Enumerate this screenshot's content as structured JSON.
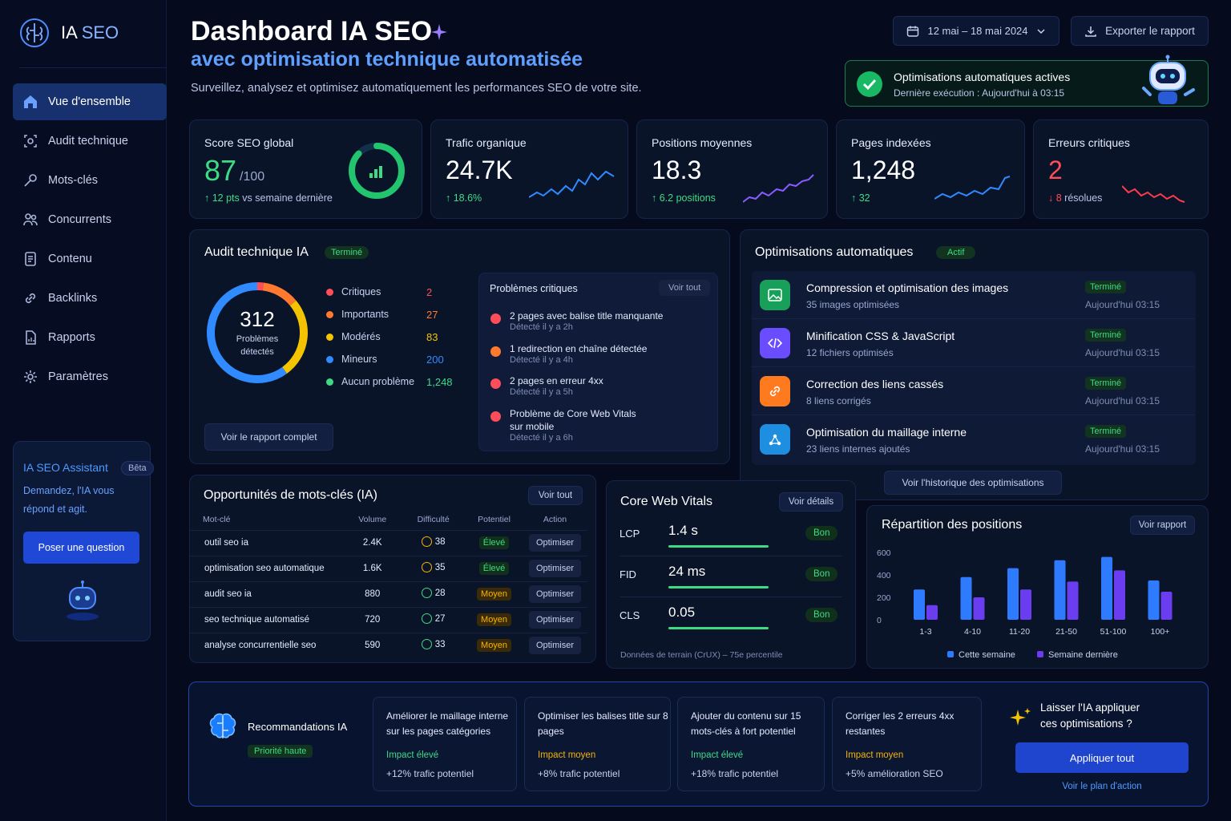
{
  "brand": {
    "name_a": "IA",
    "name_b": "SEO"
  },
  "nav": [
    {
      "label": "Vue d'ensemble",
      "icon": "home-icon"
    },
    {
      "label": "Audit technique",
      "icon": "audit-icon"
    },
    {
      "label": "Mots-clés",
      "icon": "key-icon"
    },
    {
      "label": "Concurrents",
      "icon": "users-icon"
    },
    {
      "label": "Contenu",
      "icon": "document-icon"
    },
    {
      "label": "Backlinks",
      "icon": "link-icon"
    },
    {
      "label": "Rapports",
      "icon": "report-icon"
    },
    {
      "label": "Paramètres",
      "icon": "gear-icon"
    }
  ],
  "assistant": {
    "title": "IA SEO Assistant",
    "badge": "Bêta",
    "text1": "Demandez, l'IA vous",
    "text2": "répond et agit.",
    "button": "Poser une question"
  },
  "header": {
    "title": "Dashboard IA SEO",
    "subtitle": "avec optimisation technique automatisée",
    "description": "Surveillez, analysez et optimisez automatiquement les performances SEO de votre site.",
    "date_range": "12 mai – 18 mai 2024",
    "export": "Exporter le rapport"
  },
  "auto_status": {
    "title": "Optimisations automatiques actives",
    "sub": "Dernière exécution : Aujourd'hui à 03:15"
  },
  "kpis": {
    "score": {
      "title": "Score SEO global",
      "value": "87",
      "unit": "/100",
      "delta": "↑ 12 pts",
      "delta_text": "vs semaine dernière",
      "fraction": 0.87
    },
    "traffic": {
      "title": "Trafic organique",
      "value": "24.7K",
      "delta": "↑ 18.6%"
    },
    "positions": {
      "title": "Positions moyennes",
      "value": "18.3",
      "delta": "↑ 6.2 positions"
    },
    "indexed": {
      "title": "Pages indexées",
      "value": "1,248",
      "delta": "↑ 32"
    },
    "errors": {
      "title": "Erreurs critiques",
      "value": "2",
      "delta": "↓ 8",
      "delta_text": "résolues"
    }
  },
  "audit": {
    "title": "Audit technique IA",
    "status": "Terminé",
    "total": "312",
    "total_l1": "Problèmes",
    "total_l2": "détectés",
    "legend": [
      {
        "label": "Critiques",
        "value": "2",
        "color": "#ff4d5a"
      },
      {
        "label": "Importants",
        "value": "27",
        "color": "#ff7a2f"
      },
      {
        "label": "Modérés",
        "value": "83",
        "color": "#f5c400"
      },
      {
        "label": "Mineurs",
        "value": "200",
        "color": "#2f8bff"
      },
      {
        "label": "Aucun problème",
        "value": "1,248",
        "color": "#3ddc84"
      }
    ],
    "report_btn": "Voir le rapport complet",
    "critical": {
      "title": "Problèmes critiques",
      "link": "Voir tout",
      "items": [
        {
          "t": "2 pages avec balise title manquante",
          "s": "Détecté il y a 2h",
          "color": "#ff4d5a"
        },
        {
          "t": "1 redirection en chaîne détectée",
          "s": "Détecté il y a 4h",
          "color": "#ff7a2f"
        },
        {
          "t": "2 pages en erreur 4xx",
          "s": "Détecté il y a 5h",
          "color": "#ff4d5a"
        },
        {
          "t": "Problème de Core Web Vitals",
          "t2": "sur mobile",
          "s": "Détecté il y a 6h",
          "color": "#ff4d5a"
        }
      ]
    }
  },
  "optim": {
    "title": "Optimisations automatiques",
    "status": "Actif",
    "history_btn": "Voir l'historique des optimisations",
    "items": [
      {
        "t": "Compression et optimisation des images",
        "s": "35 images optimisées",
        "chip": "Terminé",
        "d": "Aujourd'hui 03:15",
        "icon": "image-icon",
        "color": "#18a05a"
      },
      {
        "t": "Minification CSS & JavaScript",
        "s": "12 fichiers optimisés",
        "chip": "Terminé",
        "d": "Aujourd'hui 03:15",
        "icon": "code-icon",
        "color": "#6a4dff"
      },
      {
        "t": "Correction des liens cassés",
        "s": "8 liens corrigés",
        "chip": "Terminé",
        "d": "Aujourd'hui 03:15",
        "icon": "link-icon",
        "color": "#ff7a1f"
      },
      {
        "t": "Optimisation du maillage interne",
        "s": "23 liens internes ajoutés",
        "chip": "Terminé",
        "d": "Aujourd'hui 03:15",
        "icon": "network-icon",
        "color": "#1e8fe0"
      }
    ]
  },
  "keywords": {
    "title": "Opportunités de mots-clés (IA)",
    "link": "Voir tout",
    "headers": [
      "Mot-clé",
      "Volume",
      "Difficulté",
      "Potentiel",
      "Action"
    ],
    "rows": [
      {
        "k": "outil seo ia",
        "v": "2.4K",
        "d": "38",
        "p": "Élevé",
        "a": "Optimiser"
      },
      {
        "k": "optimisation seo automatique",
        "v": "1.6K",
        "d": "35",
        "p": "Élevé",
        "a": "Optimiser"
      },
      {
        "k": "audit seo ia",
        "v": "880",
        "d": "28",
        "p": "Moyen",
        "a": "Optimiser"
      },
      {
        "k": "seo technique automatisé",
        "v": "720",
        "d": "27",
        "p": "Moyen",
        "a": "Optimiser"
      },
      {
        "k": "analyse concurrentielle seo",
        "v": "590",
        "d": "33",
        "p": "Moyen",
        "a": "Optimiser"
      }
    ]
  },
  "cwv": {
    "title": "Core Web Vitals",
    "link": "Voir détails",
    "footer": "Données de terrain (CrUX) – 75e percentile",
    "rows": [
      {
        "l": "LCP",
        "v": "1.4 s",
        "chip": "Bon"
      },
      {
        "l": "FID",
        "v": "24 ms",
        "chip": "Bon"
      },
      {
        "l": "CLS",
        "v": "0.05",
        "chip": "Bon"
      }
    ]
  },
  "chart_data": {
    "type": "bar",
    "title": "Répartition des positions",
    "link": "Voir rapport",
    "categories": [
      "1-3",
      "4-10",
      "11-20",
      "21-50",
      "51-100",
      "100+"
    ],
    "yticks": [
      "600",
      "400",
      "200",
      "0"
    ],
    "ylim": [
      0,
      600
    ],
    "series": [
      {
        "name": "Cette semaine",
        "values": [
          270,
          380,
          460,
          530,
          560,
          350
        ],
        "color": "#2f7bff"
      },
      {
        "name": "Semaine dernière",
        "values": [
          130,
          200,
          270,
          340,
          440,
          250
        ],
        "color": "#6a3df0"
      }
    ]
  },
  "recos": {
    "title": "Recommandations IA",
    "badge": "Priorité haute",
    "items": [
      {
        "t": "Améliorer le maillage interne sur les pages catégories",
        "i": "Impact élevé",
        "p": "+12% trafic potentiel",
        "lvl": "hi"
      },
      {
        "t": "Optimiser les balises title sur 8 pages",
        "i": "Impact moyen",
        "p": "+8% trafic potentiel",
        "lvl": "md"
      },
      {
        "t": "Ajouter du contenu sur 15 mots-clés à fort potentiel",
        "i": "Impact élevé",
        "p": "+18% trafic potentiel",
        "lvl": "hi"
      },
      {
        "t": "Corriger les 2 erreurs 4xx restantes",
        "i": "Impact moyen",
        "p": "+5% amélioration SEO",
        "lvl": "md"
      }
    ],
    "cta_q1": "Laisser l'IA appliquer",
    "cta_q2": "ces optimisations ?",
    "cta_btn": "Appliquer tout",
    "cta_link": "Voir le plan d'action"
  }
}
